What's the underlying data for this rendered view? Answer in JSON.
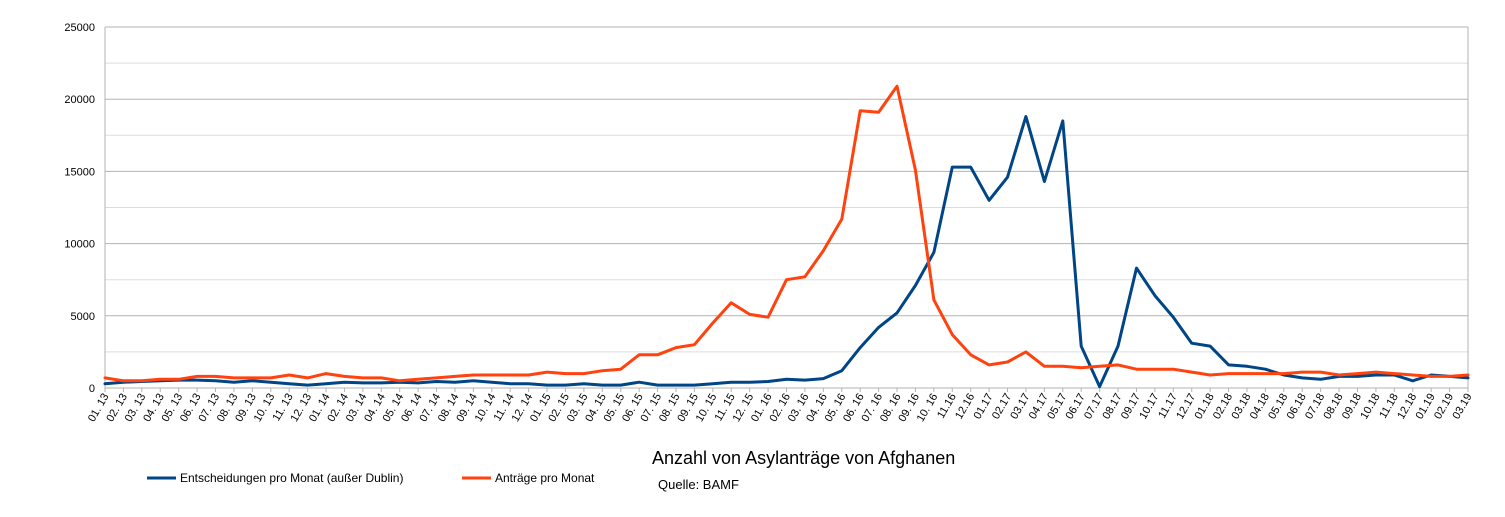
{
  "chart_data": {
    "type": "line",
    "title": "Anzahl von Asylanträge von Afghanen",
    "subtitle": "Quelle: BAMF",
    "xlabel": "",
    "ylabel": "",
    "ylim": [
      0,
      25000
    ],
    "yticks": [
      "0",
      "5000",
      "10000",
      "15000",
      "20000",
      "25000"
    ],
    "grid": true,
    "legend_position": "bottom-left",
    "categories": [
      "01. 13",
      "02. 13",
      "03. 13",
      "04. 13",
      "05. 13",
      "06. 13",
      "07. 13",
      "08. 13",
      "09. 13",
      "10. 13",
      "11. 13",
      "12. 13",
      "01. 14",
      "02. 14",
      "03. 14",
      "04. 14",
      "05. 14",
      "06. 14",
      "07. 14",
      "08. 14",
      "09. 14",
      "10. 14",
      "11. 14",
      "12. 14",
      "01. 15",
      "02. 15",
      "03. 15",
      "04. 15",
      "05. 15",
      "06. 15",
      "07. 15",
      "08. 15",
      "09. 15",
      "10. 15",
      "11. 15",
      "12. 15",
      "01. 16",
      "02. 16",
      "03. 16",
      "04. 16",
      "05. 16",
      "06. 16",
      "07. 16",
      "08. 16",
      "09. 16",
      "10. 16",
      "11.16",
      "12.16",
      "01.17",
      "02.17",
      "03.17",
      "04.17",
      "05.17",
      "06.17",
      "07.17",
      "08.17",
      "09.17",
      "10.17",
      "11.17",
      "12.17",
      "01.18",
      "02.18",
      "03.18",
      "04.18",
      "05.18",
      "06.18",
      "07.18",
      "08.18",
      "09.18",
      "10.18",
      "11.18",
      "12.18",
      "01.19",
      "02.19",
      "03.19"
    ],
    "series": [
      {
        "name": "Entscheidungen pro Monat (außer Dublin)",
        "color": "#004586",
        "values": [
          300,
          400,
          450,
          500,
          550,
          550,
          500,
          400,
          500,
          400,
          300,
          200,
          300,
          400,
          350,
          350,
          400,
          350,
          450,
          400,
          500,
          400,
          300,
          300,
          200,
          200,
          300,
          200,
          200,
          400,
          200,
          200,
          200,
          300,
          400,
          400,
          450,
          600,
          550,
          650,
          1200,
          2800,
          4200,
          5200,
          7100,
          9400,
          15300,
          15300,
          13000,
          14600,
          18800,
          14300,
          18500,
          2900,
          100,
          2900,
          8300,
          6400,
          4900,
          3100,
          2900,
          1600,
          1500,
          1300,
          900,
          700,
          600,
          800,
          800,
          900,
          900,
          500,
          900,
          800,
          700
        ]
      },
      {
        "name": "Anträge pro Monat",
        "color": "#ff420e",
        "values": [
          700,
          500,
          500,
          600,
          600,
          800,
          800,
          700,
          700,
          700,
          900,
          700,
          1000,
          800,
          700,
          700,
          500,
          600,
          700,
          800,
          900,
          900,
          900,
          900,
          1100,
          1000,
          1000,
          1200,
          1300,
          2300,
          2300,
          2800,
          3000,
          4500,
          5900,
          5100,
          4900,
          7500,
          7700,
          9500,
          11700,
          19200,
          19100,
          20900,
          15100,
          6100,
          3700,
          2300,
          1600,
          1800,
          2500,
          1500,
          1500,
          1400,
          1500,
          1600,
          1300,
          1300,
          1300,
          1100,
          900,
          1000,
          1000,
          1000,
          1000,
          1100,
          1100,
          900,
          1000,
          1100,
          1000,
          900,
          800,
          800,
          900
        ]
      }
    ]
  }
}
